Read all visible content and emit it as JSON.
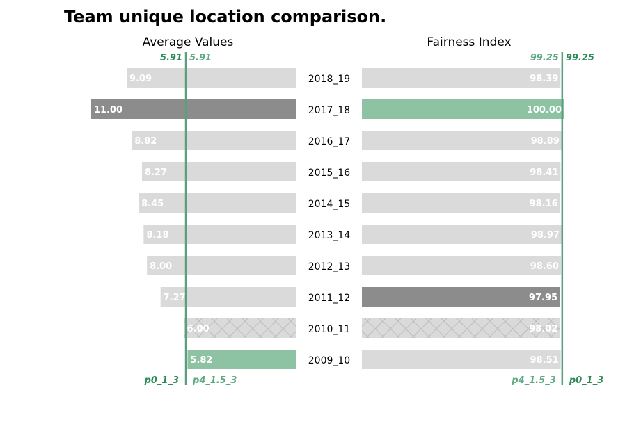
{
  "chart_data": {
    "type": "bar",
    "title": "Team unique location comparison.",
    "categories": [
      "2018_19",
      "2017_18",
      "2016_17",
      "2015_16",
      "2014_15",
      "2013_14",
      "2012_13",
      "2011_12",
      "2010_11",
      "2009_10"
    ],
    "panels": [
      {
        "subtitle": "Average Values",
        "values": [
          9.09,
          11.0,
          8.82,
          8.27,
          8.45,
          8.18,
          8.0,
          7.27,
          6.0,
          5.82
        ],
        "value_labels": [
          "9.09",
          "11.00",
          "8.82",
          "8.27",
          "8.45",
          "8.18",
          "8.00",
          "7.27",
          "6.00",
          "5.82"
        ],
        "xlim": [
          0,
          11
        ],
        "direction": "right-to-left",
        "reference": {
          "value": 5.91,
          "label_a": "5.91",
          "label_b": "5.91",
          "name_a": "p0_1_3",
          "name_b": "p4_1.5_3"
        }
      },
      {
        "subtitle": "Fairness Index",
        "values": [
          98.39,
          100.0,
          98.89,
          98.41,
          98.16,
          98.97,
          98.6,
          97.95,
          98.02,
          98.51
        ],
        "value_labels": [
          "98.39",
          "100.00",
          "98.89",
          "98.41",
          "98.16",
          "98.97",
          "98.60",
          "97.95",
          "98.02",
          "98.51"
        ],
        "xlim": [
          0,
          100
        ],
        "direction": "left-to-right",
        "reference": {
          "value": 99.25,
          "label_a": "99.25",
          "label_b": "99.25",
          "name_a": "p4_1.5_3",
          "name_b": "p0_1_3"
        }
      }
    ],
    "bar_styles": [
      "default",
      "dark",
      "default",
      "default",
      "default",
      "default",
      "default",
      "dark-right",
      "hatched",
      "green-left"
    ],
    "colors": {
      "default": "#dadada",
      "dark": "#8c8c8c",
      "green": "#8dc3a3",
      "reference_line": "#5e9e80",
      "reference_text_dark": "#2e8b57",
      "reference_text_light": "#5ea982",
      "hatch": "#bdbdbd"
    }
  }
}
